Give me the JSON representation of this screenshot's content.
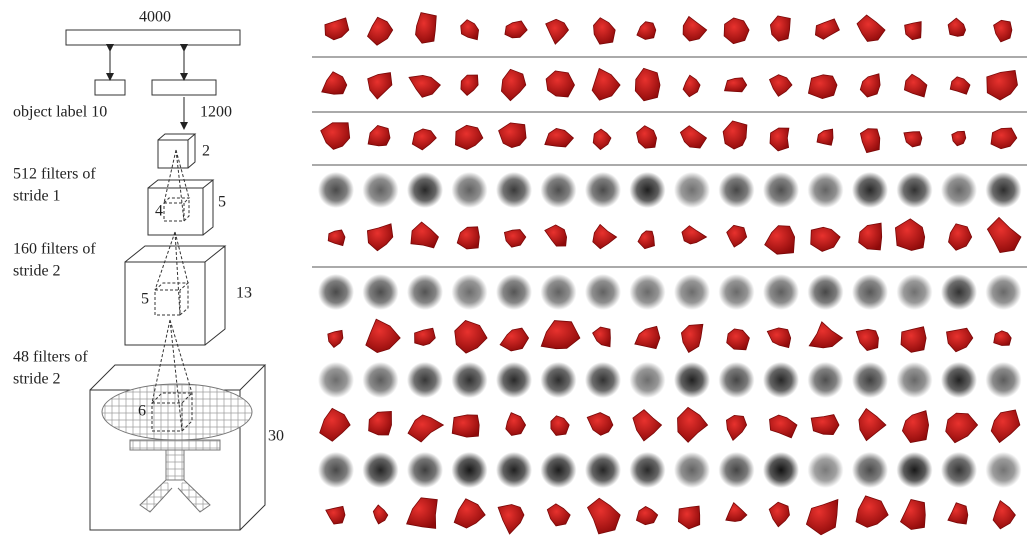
{
  "diagram": {
    "top_units": "4000",
    "label_units": "object label 10",
    "hidden_units": "1200",
    "cubes": [
      {
        "size": "2"
      },
      {
        "size": "5",
        "filter_size": "4"
      },
      {
        "size": "13",
        "filter_size": "5"
      },
      {
        "size": "30",
        "filter_size": "6"
      }
    ],
    "layers": [
      {
        "line1": "512 filters of",
        "line2": "stride 1"
      },
      {
        "line1": "160 filters of",
        "line2": "stride 2"
      },
      {
        "line1": "48 filters of",
        "line2": "stride 2"
      }
    ]
  }
}
